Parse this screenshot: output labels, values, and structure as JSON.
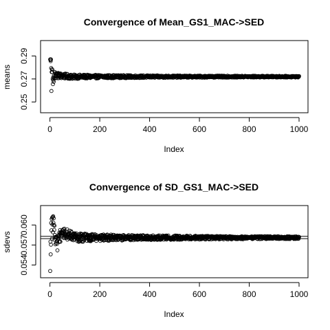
{
  "chart_data": [
    {
      "type": "scatter",
      "title": "Convergence of Mean_GS1_MAC->SED",
      "xlabel": "Index",
      "ylabel": "means",
      "xlim": [
        1,
        1000
      ],
      "ylim": [
        0.243,
        0.301
      ],
      "xticks": [
        0,
        200,
        400,
        600,
        800,
        1000
      ],
      "yticks": [
        0.25,
        0.27,
        0.29
      ],
      "ytick_labels": [
        "0.25",
        "0.27",
        "0.29"
      ],
      "hlines": [],
      "n_points": 1000,
      "series": [
        {
          "description_points": [
            [
              1,
              0.287
            ],
            [
              2,
              0.2865
            ],
            [
              3,
              0.2855
            ],
            [
              4,
              0.287
            ],
            [
              5,
              0.2795
            ],
            [
              6,
              0.2595
            ],
            [
              7,
              0.276
            ],
            [
              8,
              0.2785
            ],
            [
              10,
              0.278
            ],
            [
              12,
              0.2655
            ],
            [
              15,
              0.2675
            ],
            [
              20,
              0.276
            ],
            [
              30,
              0.2745
            ],
            [
              50,
              0.2735
            ],
            [
              100,
              0.2715
            ],
            [
              200,
              0.272
            ],
            [
              400,
              0.272
            ],
            [
              600,
              0.2721
            ],
            [
              800,
              0.272
            ],
            [
              1000,
              0.272
            ]
          ],
          "center": 0.272,
          "spread_start": 0.0045,
          "spread_end": 0.0007
        }
      ]
    },
    {
      "type": "scatter",
      "title": "Convergence of SD_GS1_MAC->SED",
      "xlabel": "Index",
      "ylabel": "sdevs",
      "xlim": [
        1,
        1000
      ],
      "ylim": [
        0.0525,
        0.0625
      ],
      "xticks": [
        0,
        200,
        400,
        600,
        800,
        1000
      ],
      "yticks": [
        0.054,
        0.057,
        0.06
      ],
      "ytick_labels": [
        "0.054",
        "0.057",
        "0.060"
      ],
      "hlines": [
        0.0583,
        0.05795
      ],
      "n_points": 1000,
      "series": [
        {
          "description_points": [
            [
              1,
              0.0531
            ],
            [
              3,
              0.0556
            ],
            [
              5,
              0.0603
            ],
            [
              7,
              0.0609
            ],
            [
              9,
              0.0611
            ],
            [
              11,
              0.0612
            ],
            [
              13,
              0.0613
            ],
            [
              15,
              0.061
            ],
            [
              18,
              0.0599
            ],
            [
              22,
              0.0571
            ],
            [
              30,
              0.0562
            ],
            [
              40,
              0.0587
            ],
            [
              60,
              0.0596
            ],
            [
              100,
              0.0583
            ],
            [
              200,
              0.058
            ],
            [
              400,
              0.0582
            ],
            [
              600,
              0.0583
            ],
            [
              800,
              0.0582
            ],
            [
              1000,
              0.058
            ]
          ],
          "center": 0.0581,
          "spread_start": 0.0018,
          "spread_end": 0.0002
        }
      ]
    }
  ]
}
